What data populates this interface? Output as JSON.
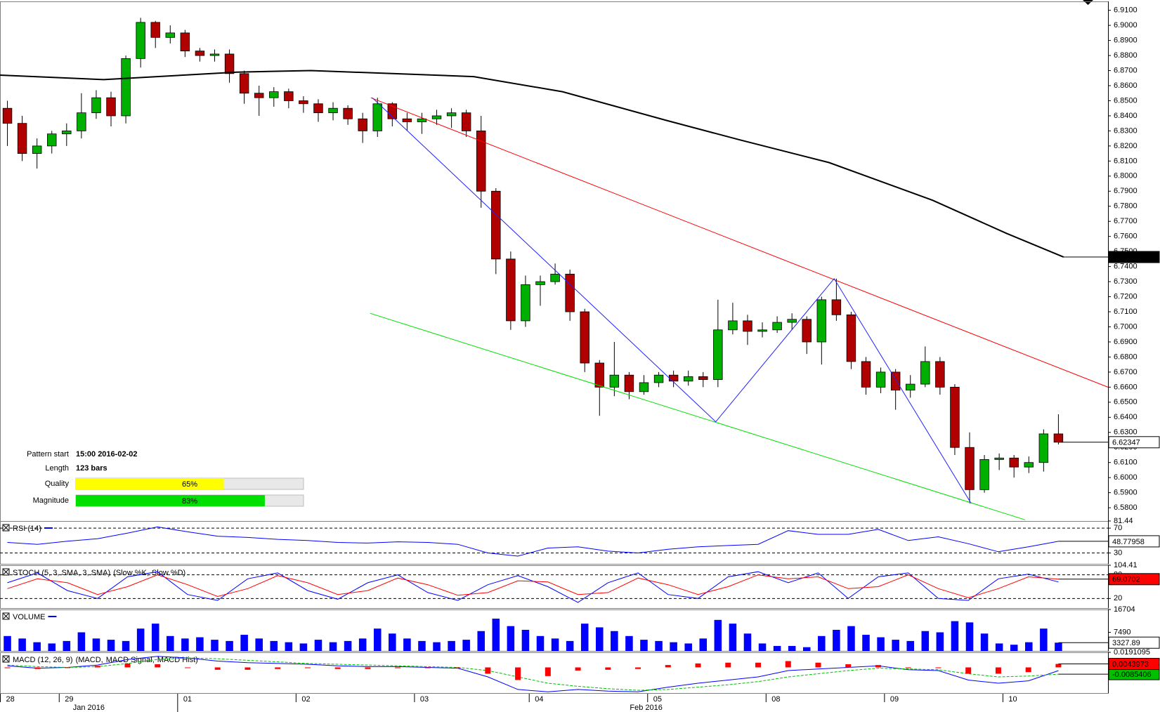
{
  "chart_data": [
    {
      "type": "candlestick",
      "xlim": [
        -0.5,
        74.35
      ],
      "xticks": [
        {
          "value": -0.5,
          "label": "28"
        },
        {
          "value": 3.5,
          "label": "29"
        },
        {
          "value": 11.5,
          "label": "01"
        },
        {
          "value": 19.5,
          "label": "02"
        },
        {
          "value": 27.5,
          "label": "03"
        },
        {
          "value": 35.25,
          "label": "04"
        },
        {
          "value": 43.25,
          "label": "05"
        },
        {
          "value": 51.25,
          "label": "08"
        },
        {
          "value": 59.25,
          "label": "09"
        },
        {
          "value": 67.25,
          "label": "10"
        }
      ],
      "xticks_major": [
        {
          "value": 5.5,
          "label": "Jan 2016"
        },
        {
          "value": 43.15,
          "label": "Feb 2016"
        }
      ],
      "ylim": [
        6.5712,
        6.9159
      ],
      "yticks": [
        {
          "value": 6.58,
          "label": "6.5800"
        },
        {
          "value": 6.59,
          "label": "6.5900"
        },
        {
          "value": 6.6,
          "label": "6.6000"
        },
        {
          "value": 6.61,
          "label": "6.6100"
        },
        {
          "value": 6.62,
          "label": "6.6200"
        },
        {
          "value": 6.63,
          "label": "6.6300"
        },
        {
          "value": 6.64,
          "label": "6.6400"
        },
        {
          "value": 6.65,
          "label": "6.6500"
        },
        {
          "value": 6.66,
          "label": "6.6600"
        },
        {
          "value": 6.67,
          "label": "6.6700"
        },
        {
          "value": 6.68,
          "label": "6.6800"
        },
        {
          "value": 6.69,
          "label": "6.6900"
        },
        {
          "value": 6.7,
          "label": "6.7000"
        },
        {
          "value": 6.71,
          "label": "6.7100"
        },
        {
          "value": 6.72,
          "label": "6.7200"
        },
        {
          "value": 6.73,
          "label": "6.7300"
        },
        {
          "value": 6.74,
          "label": "6.7400"
        },
        {
          "value": 6.75,
          "label": "6.7500"
        },
        {
          "value": 6.76,
          "label": "6.7600"
        },
        {
          "value": 6.77,
          "label": "6.7700"
        },
        {
          "value": 6.78,
          "label": "6.7800"
        },
        {
          "value": 6.79,
          "label": "6.7900"
        },
        {
          "value": 6.8,
          "label": "6.8000"
        },
        {
          "value": 6.81,
          "label": "6.8100"
        },
        {
          "value": 6.82,
          "label": "6.8200"
        },
        {
          "value": 6.83,
          "label": "6.8300"
        },
        {
          "value": 6.84,
          "label": "6.8400"
        },
        {
          "value": 6.85,
          "label": "6.8500"
        },
        {
          "value": 6.86,
          "label": "6.8600"
        },
        {
          "value": 6.87,
          "label": "6.8700"
        },
        {
          "value": 6.88,
          "label": "6.8800"
        },
        {
          "value": 6.89,
          "label": "6.8900"
        },
        {
          "value": 6.9,
          "label": "6.9000"
        },
        {
          "value": 6.91,
          "label": "6.9100"
        }
      ],
      "up_color": "#00b000",
      "down_color": "#b00000",
      "close_box": "#ffffff",
      "open": [
        6.845,
        6.835,
        6.815,
        6.82,
        6.828,
        6.83,
        6.842,
        6.852,
        6.84,
        6.878,
        6.902,
        6.892,
        6.895,
        6.883,
        6.88,
        6.881,
        6.868,
        6.855,
        6.852,
        6.856,
        6.85,
        6.848,
        6.842,
        6.845,
        6.838,
        6.83,
        6.848,
        6.838,
        6.836,
        6.838,
        6.84,
        6.842,
        6.83,
        6.79,
        6.745,
        6.704,
        6.728,
        6.73,
        6.735,
        6.71,
        6.676,
        6.66,
        6.668,
        6.657,
        6.663,
        6.668,
        6.664,
        6.667,
        6.665,
        6.698,
        6.704,
        6.697,
        6.698,
        6.703,
        6.705,
        6.69,
        6.718,
        6.708,
        6.677,
        6.66,
        6.67,
        6.658,
        6.662,
        6.677,
        6.66,
        6.62,
        6.592,
        6.612,
        6.613,
        6.607,
        6.61,
        6.629
      ],
      "high": [
        6.85,
        6.84,
        6.825,
        6.83,
        6.835,
        6.855,
        6.857,
        6.856,
        6.88,
        6.905,
        6.903,
        6.9,
        6.897,
        6.885,
        6.884,
        6.884,
        6.87,
        6.86,
        6.859,
        6.858,
        6.853,
        6.851,
        6.849,
        6.847,
        6.842,
        6.852,
        6.849,
        6.842,
        6.842,
        6.844,
        6.845,
        6.844,
        6.84,
        6.792,
        6.75,
        6.734,
        6.734,
        6.742,
        6.738,
        6.712,
        6.678,
        6.69,
        6.67,
        6.668,
        6.67,
        6.671,
        6.671,
        6.67,
        6.718,
        6.716,
        6.708,
        6.703,
        6.707,
        6.709,
        6.707,
        6.72,
        6.732,
        6.71,
        6.68,
        6.673,
        6.672,
        6.668,
        6.687,
        6.68,
        6.662,
        6.63,
        6.615,
        6.616,
        6.615,
        6.614,
        6.632,
        6.642
      ],
      "low": [
        6.82,
        6.81,
        6.805,
        6.815,
        6.82,
        6.825,
        6.838,
        6.833,
        6.835,
        6.872,
        6.885,
        6.888,
        6.879,
        6.876,
        6.876,
        6.862,
        6.848,
        6.84,
        6.846,
        6.845,
        6.842,
        6.836,
        6.837,
        6.834,
        6.822,
        6.826,
        6.833,
        6.83,
        6.828,
        6.834,
        6.832,
        6.826,
        6.779,
        6.735,
        6.698,
        6.7,
        6.714,
        6.728,
        6.704,
        6.67,
        6.641,
        6.654,
        6.652,
        6.655,
        6.66,
        6.66,
        6.661,
        6.66,
        6.66,
        6.695,
        6.688,
        6.693,
        6.696,
        6.698,
        6.682,
        6.675,
        6.704,
        6.672,
        6.655,
        6.656,
        6.645,
        6.653,
        6.66,
        6.655,
        6.615,
        6.583,
        6.59,
        6.605,
        6.6,
        6.603,
        6.604,
        6.622
      ],
      "close": [
        6.835,
        6.815,
        6.82,
        6.828,
        6.83,
        6.842,
        6.852,
        6.84,
        6.878,
        6.902,
        6.892,
        6.895,
        6.883,
        6.88,
        6.881,
        6.868,
        6.855,
        6.852,
        6.856,
        6.85,
        6.848,
        6.842,
        6.845,
        6.838,
        6.83,
        6.848,
        6.838,
        6.836,
        6.838,
        6.84,
        6.842,
        6.83,
        6.79,
        6.745,
        6.704,
        6.728,
        6.73,
        6.735,
        6.71,
        6.676,
        6.66,
        6.668,
        6.657,
        6.663,
        6.668,
        6.664,
        6.667,
        6.665,
        6.698,
        6.704,
        6.697,
        6.698,
        6.703,
        6.705,
        6.69,
        6.718,
        6.708,
        6.677,
        6.66,
        6.67,
        6.658,
        6.662,
        6.677,
        6.66,
        6.62,
        6.592,
        6.612,
        6.613,
        6.607,
        6.61,
        6.629,
        6.62347
      ],
      "lines": [
        {
          "color": "#000000",
          "width": 2,
          "current_value_box": "#000000",
          "x": [
            -0.5,
            6.5,
            15.5,
            20.5,
            31.5,
            37.5,
            44.5,
            49.5,
            55.5,
            62.5,
            67.5,
            71.35
          ],
          "values": [
            6.867,
            6.864,
            6.869,
            6.87,
            6.866,
            6.856,
            6.837,
            6.824,
            6.809,
            6.784,
            6.762,
            6.74632
          ]
        },
        {
          "color": "#ff0000",
          "width": 1,
          "x": [
            24.55,
            74.35
          ],
          "values": [
            6.852,
            6.66
          ]
        },
        {
          "color": "#00e000",
          "width": 1,
          "x": [
            24.5,
            68.75
          ],
          "values": [
            6.709,
            6.572
          ]
        },
        {
          "color": "#2020ff",
          "width": 1,
          "x": [
            24.65,
            47.85,
            55.85,
            65.1
          ],
          "values": [
            6.852,
            6.637,
            6.732,
            6.583
          ]
        }
      ],
      "pattern_info": {
        "xlim": [
          0,
          100
        ],
        "rows": [
          {
            "label": "Pattern start",
            "text": "15:00 2016-02-02"
          },
          {
            "label": "Length",
            "text": "123 bars"
          },
          {
            "label": "Quality",
            "value": 65,
            "value_label": "65%",
            "color": "#ffff00"
          },
          {
            "label": "Magnitude",
            "value": 83,
            "value_label": "83%",
            "color": "#00e000"
          }
        ]
      }
    },
    {
      "type": "line",
      "title": "RSI (14)",
      "title_color": "#0000ff",
      "ylim": [
        12.55,
        81.44
      ],
      "yticks": [
        81.44,
        70,
        30
      ],
      "levels": [
        70,
        30
      ],
      "series": [
        {
          "color": "#0000ff",
          "current_value_box": "#ffffff",
          "values": [
            47,
            44,
            49,
            53,
            62,
            72,
            64,
            57,
            55,
            52,
            50,
            47,
            46,
            48,
            47,
            44,
            30,
            25,
            38,
            40,
            33,
            30,
            36,
            40,
            42,
            44,
            66,
            60,
            60,
            68,
            50,
            56,
            45,
            32,
            40,
            48.77958
          ]
        }
      ]
    },
    {
      "type": "line",
      "title": "STOCH (5, 3, SMA, 3, SMA)",
      "ylim": [
        -4.41,
        104.41
      ],
      "yticks": [
        104.41,
        80,
        20
      ],
      "levels": [
        80,
        20
      ],
      "series": [
        {
          "name": "(Slow %K,",
          "color": "#0000ff",
          "values": [
            60,
            85,
            40,
            20,
            75,
            88,
            30,
            15,
            70,
            85,
            40,
            18,
            60,
            80,
            35,
            15,
            55,
            78,
            50,
            10,
            60,
            85,
            30,
            20,
            75,
            88,
            60,
            85,
            20,
            75,
            85,
            20,
            15,
            70,
            82,
            62
          ]
        },
        {
          "name": "Slow %D)",
          "color": "#ff0000",
          "current_value_box": "#ff0000",
          "values": [
            45,
            70,
            60,
            30,
            50,
            80,
            55,
            25,
            45,
            78,
            60,
            30,
            40,
            72,
            55,
            28,
            35,
            65,
            62,
            30,
            35,
            72,
            55,
            30,
            50,
            80,
            70,
            75,
            45,
            50,
            80,
            45,
            22,
            45,
            75,
            69.0702
          ]
        }
      ]
    },
    {
      "type": "bar",
      "title": "VOLUME",
      "title_color": "#0000ff",
      "color": "#0000ff",
      "current_value_box": "#ffffff",
      "ylim": [
        0,
        16704
      ],
      "yticks": [
        16704,
        7490
      ],
      "values": [
        6000,
        5000,
        3500,
        3000,
        4000,
        7500,
        5000,
        4500,
        4000,
        9000,
        11000,
        6000,
        5000,
        5500,
        4500,
        4000,
        6500,
        5000,
        4000,
        3500,
        3000,
        4500,
        3500,
        4000,
        5000,
        9000,
        7000,
        5000,
        4000,
        3500,
        4000,
        4500,
        8000,
        13000,
        10000,
        8500,
        6000,
        5000,
        4000,
        11000,
        9500,
        8000,
        6000,
        4500,
        4000,
        3500,
        3000,
        5000,
        12500,
        11000,
        7000,
        3000,
        2000,
        2000,
        1500,
        6000,
        8500,
        10000,
        6500,
        5500,
        4500,
        4000,
        8000,
        7500,
        12000,
        11500,
        7000,
        3000,
        2500,
        3500,
        9000,
        3327.89
      ]
    },
    {
      "type": "macd",
      "title": "MACD (12, 26, 9)",
      "ylim": [
        -0.0325,
        0.0191095
      ],
      "yticks": [
        0.0191095
      ],
      "series": [
        {
          "name": "(MACD,",
          "color": "#0000ff",
          "values": [
            0.002,
            -0.001,
            0,
            0.003,
            0.01,
            0.014,
            0.012,
            0.008,
            0.006,
            0.005,
            0.004,
            0.002,
            0.001,
            0.001,
            0,
            -0.001,
            -0.012,
            -0.028,
            -0.031,
            -0.028,
            -0.03,
            -0.031,
            -0.025,
            -0.02,
            -0.016,
            -0.012,
            -0.004,
            -0.002,
            0,
            0.002,
            -0.003,
            -0.004,
            -0.016,
            -0.02,
            -0.017,
            -0.0041433
          ]
        },
        {
          "name": "MACD Signal,",
          "color": "#00c000",
          "dashed": true,
          "current_value_box": "#00c000",
          "values": [
            0.003,
            0.001,
            0,
            0.001,
            0.005,
            0.01,
            0.012,
            0.011,
            0.009,
            0.007,
            0.005,
            0.004,
            0.003,
            0.002,
            0.001,
            0,
            -0.004,
            -0.012,
            -0.02,
            -0.024,
            -0.027,
            -0.029,
            -0.028,
            -0.025,
            -0.022,
            -0.018,
            -0.012,
            -0.008,
            -0.004,
            -0.001,
            -0.002,
            -0.003,
            -0.008,
            -0.012,
            -0.011,
            -0.0085406
          ]
        },
        {
          "name": "MACD Hist)",
          "color": "#ff0000",
          "kind": "bar",
          "current_value_box": "#ff0000",
          "values": [
            -0.001,
            -0.002,
            0,
            0.002,
            0.005,
            0.004,
            0,
            -0.003,
            -0.003,
            -0.002,
            -0.001,
            -0.002,
            -0.002,
            -0.001,
            -0.001,
            -0.001,
            -0.008,
            -0.016,
            -0.011,
            -0.004,
            -0.003,
            -0.002,
            0.003,
            0.005,
            0.006,
            0.006,
            0.008,
            0.006,
            0.004,
            0.003,
            -0.001,
            -0.001,
            -0.008,
            -0.008,
            -0.006,
            0.0043973
          ]
        }
      ]
    }
  ]
}
